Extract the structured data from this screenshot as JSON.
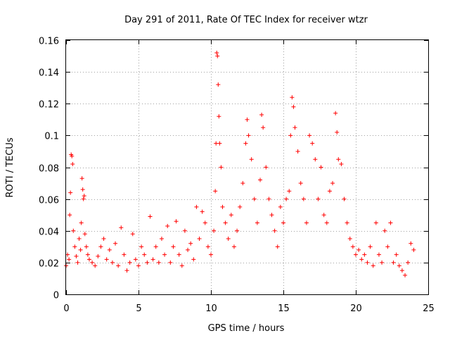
{
  "chart_data": {
    "type": "scatter",
    "title": "Day 291 of 2011, Rate Of TEC Index for receiver wtzr",
    "xlabel": "GPS time / hours",
    "ylabel": "ROTI / TECUs",
    "xlim": [
      0,
      25
    ],
    "ylim": [
      0,
      0.16
    ],
    "xticks": [
      "0",
      "5",
      "10",
      "15",
      "20",
      "25"
    ],
    "yticks": [
      "0",
      "0.02",
      "0.04",
      "0.06",
      "0.08",
      "0.1",
      "0.12",
      "0.14",
      "0.16"
    ],
    "grid": true,
    "marker": "plus",
    "color": "#ff0000",
    "series": [
      {
        "x": [
          0.0,
          0.1,
          0.2,
          0.25,
          0.3,
          0.35,
          0.4,
          0.45,
          0.5,
          0.6,
          0.7,
          0.8,
          0.9,
          1.0,
          1.05,
          1.1,
          1.15,
          1.2,
          1.25,
          1.3,
          1.4,
          1.5,
          1.6,
          1.8,
          2.0,
          2.2,
          2.4,
          2.6,
          2.8,
          3.0,
          3.2,
          3.4,
          3.6,
          3.8,
          4.0,
          4.2,
          4.4,
          4.6,
          4.8,
          5.0,
          5.2,
          5.4,
          5.6,
          5.8,
          6.0,
          6.2,
          6.4,
          6.6,
          6.8,
          7.0,
          7.2,
          7.4,
          7.6,
          7.8,
          8.0,
          8.2,
          8.4,
          8.6,
          8.8,
          9.0,
          9.2,
          9.4,
          9.6,
          9.8,
          10.0,
          10.2,
          10.3,
          10.35,
          10.4,
          10.45,
          10.5,
          10.55,
          10.6,
          10.7,
          10.8,
          11.0,
          11.2,
          11.4,
          11.6,
          11.8,
          12.0,
          12.2,
          12.4,
          12.5,
          12.6,
          12.8,
          13.0,
          13.2,
          13.4,
          13.5,
          13.6,
          13.8,
          14.0,
          14.2,
          14.4,
          14.6,
          14.8,
          15.0,
          15.2,
          15.4,
          15.5,
          15.6,
          15.7,
          15.8,
          16.0,
          16.2,
          16.4,
          16.6,
          16.8,
          17.0,
          17.2,
          17.4,
          17.6,
          17.8,
          18.0,
          18.2,
          18.4,
          18.6,
          18.7,
          18.8,
          19.0,
          19.2,
          19.4,
          19.6,
          19.8,
          20.0,
          20.2,
          20.4,
          20.6,
          20.8,
          21.0,
          21.2,
          21.4,
          21.6,
          21.8,
          22.0,
          22.2,
          22.4,
          22.6,
          22.8,
          23.0,
          23.2,
          23.4,
          23.6,
          23.8,
          24.0
        ],
        "y": [
          0.018,
          0.025,
          0.022,
          0.05,
          0.064,
          0.088,
          0.087,
          0.082,
          0.04,
          0.03,
          0.024,
          0.02,
          0.035,
          0.028,
          0.045,
          0.073,
          0.066,
          0.06,
          0.062,
          0.038,
          0.03,
          0.025,
          0.022,
          0.02,
          0.018,
          0.024,
          0.03,
          0.035,
          0.022,
          0.028,
          0.02,
          0.032,
          0.018,
          0.042,
          0.025,
          0.015,
          0.02,
          0.038,
          0.022,
          0.018,
          0.03,
          0.025,
          0.02,
          0.049,
          0.022,
          0.03,
          0.02,
          0.035,
          0.025,
          0.043,
          0.02,
          0.03,
          0.046,
          0.025,
          0.018,
          0.04,
          0.028,
          0.032,
          0.022,
          0.055,
          0.035,
          0.052,
          0.045,
          0.03,
          0.025,
          0.04,
          0.065,
          0.095,
          0.152,
          0.15,
          0.132,
          0.112,
          0.095,
          0.08,
          0.055,
          0.045,
          0.035,
          0.05,
          0.03,
          0.04,
          0.055,
          0.07,
          0.095,
          0.11,
          0.1,
          0.085,
          0.06,
          0.045,
          0.072,
          0.113,
          0.105,
          0.08,
          0.06,
          0.05,
          0.04,
          0.03,
          0.055,
          0.045,
          0.06,
          0.065,
          0.1,
          0.124,
          0.118,
          0.105,
          0.09,
          0.07,
          0.06,
          0.045,
          0.1,
          0.095,
          0.085,
          0.06,
          0.08,
          0.05,
          0.045,
          0.065,
          0.07,
          0.114,
          0.102,
          0.085,
          0.082,
          0.06,
          0.045,
          0.035,
          0.03,
          0.025,
          0.028,
          0.022,
          0.025,
          0.02,
          0.03,
          0.018,
          0.045,
          0.025,
          0.02,
          0.04,
          0.03,
          0.045,
          0.02,
          0.025,
          0.018,
          0.015,
          0.012,
          0.02,
          0.032,
          0.028
        ]
      }
    ]
  }
}
